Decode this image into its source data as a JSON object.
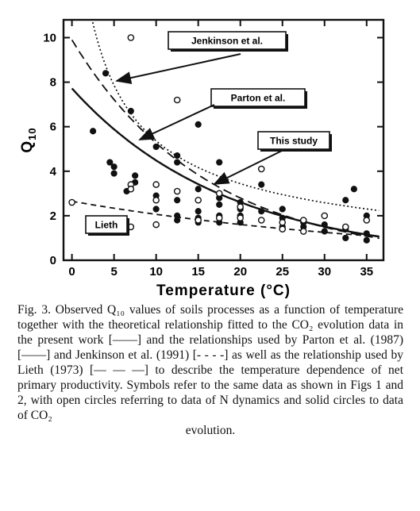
{
  "figure": {
    "chart_data": {
      "type": "scatter",
      "xlabel": "Temperature (°C)",
      "ylabel": "Q",
      "ylabel_sub": "10",
      "xlim": [
        -1,
        37
      ],
      "ylim": [
        0,
        10.8
      ],
      "x_ticks": [
        0,
        5,
        10,
        15,
        20,
        25,
        30,
        35
      ],
      "y_ticks": [
        0,
        2,
        4,
        6,
        8,
        10
      ],
      "grid": false,
      "series": [
        {
          "marker": "solid-circle",
          "points": [
            [
              2.5,
              5.8
            ],
            [
              4,
              8.4
            ],
            [
              4.5,
              4.4
            ],
            [
              5,
              4.2
            ],
            [
              5,
              3.9
            ],
            [
              6.5,
              3.1
            ],
            [
              7,
              6.7
            ],
            [
              7.5,
              3.8
            ],
            [
              7.5,
              3.5
            ],
            [
              10,
              5.1
            ],
            [
              10,
              2.9
            ],
            [
              10,
              2.3
            ],
            [
              12.5,
              4.7
            ],
            [
              12.5,
              4.4
            ],
            [
              12.5,
              2.7
            ],
            [
              12.5,
              2.0
            ],
            [
              12.5,
              1.8
            ],
            [
              15,
              6.1
            ],
            [
              15,
              3.2
            ],
            [
              15,
              2.2
            ],
            [
              15,
              1.9
            ],
            [
              15,
              1.7
            ],
            [
              17.5,
              4.4
            ],
            [
              17.5,
              2.8
            ],
            [
              17.5,
              2.5
            ],
            [
              17.5,
              2.0
            ],
            [
              17.5,
              1.7
            ],
            [
              20,
              2.6
            ],
            [
              20,
              2.3
            ],
            [
              20,
              2.0
            ],
            [
              20,
              1.7
            ],
            [
              22.5,
              3.4
            ],
            [
              22.5,
              2.2
            ],
            [
              22.5,
              1.8
            ],
            [
              25,
              2.3
            ],
            [
              25,
              1.9
            ],
            [
              25,
              1.5
            ],
            [
              27.5,
              1.7
            ],
            [
              27.5,
              1.5
            ],
            [
              30,
              1.6
            ],
            [
              30,
              1.3
            ],
            [
              32.5,
              2.7
            ],
            [
              32.5,
              1.4
            ],
            [
              32.5,
              1.0
            ],
            [
              33.5,
              3.2
            ],
            [
              35,
              2.0
            ],
            [
              35,
              1.2
            ],
            [
              35,
              0.9
            ]
          ]
        },
        {
          "marker": "open-circle",
          "points": [
            [
              0,
              2.6
            ],
            [
              7,
              10.0
            ],
            [
              7,
              3.4
            ],
            [
              7,
              3.2
            ],
            [
              7,
              1.5
            ],
            [
              10,
              3.4
            ],
            [
              10,
              2.7
            ],
            [
              10,
              1.6
            ],
            [
              12.5,
              7.2
            ],
            [
              12.5,
              3.1
            ],
            [
              15,
              2.7
            ],
            [
              15,
              1.8
            ],
            [
              17.5,
              3.0
            ],
            [
              17.5,
              1.9
            ],
            [
              20,
              2.4
            ],
            [
              20,
              1.9
            ],
            [
              22.5,
              4.1
            ],
            [
              22.5,
              1.8
            ],
            [
              25,
              1.7
            ],
            [
              25,
              1.4
            ],
            [
              27.5,
              1.8
            ],
            [
              27.5,
              1.3
            ],
            [
              30,
              2.0
            ],
            [
              32.5,
              1.5
            ],
            [
              35,
              1.8
            ]
          ]
        }
      ],
      "curves": [
        {
          "label": "This study",
          "style": "solid"
        },
        {
          "label": "Parton et al.",
          "style": "long-dash"
        },
        {
          "label": "Jenkinson et al.",
          "style": "dotted"
        },
        {
          "label": "Lieth",
          "style": "short-dash"
        }
      ]
    },
    "annotations": {
      "jenkinson": "Jenkinson et al.",
      "parton": "Parton et al.",
      "this_study": "This study",
      "lieth": "Lieth"
    }
  },
  "caption": {
    "p1": "Fig. 3. Observed Q₁₀ values of soils processes as a function of temperature together with the theoretical relationship fitted to the CO₂ evolution data in the present work [——] and the relationships used by Parton et al. (1987) [——] and Jenkinson et al. (1991) [- - - -] as well as the relationship used by Lieth (1973) [— — —] to describe the temperature dependence of net primary productivity. Symbols refer to the same data as shown in Figs 1 and 2, with open circles referring to data of N dynamics and solid circles to data of CO₂",
    "p2": "evolution."
  }
}
